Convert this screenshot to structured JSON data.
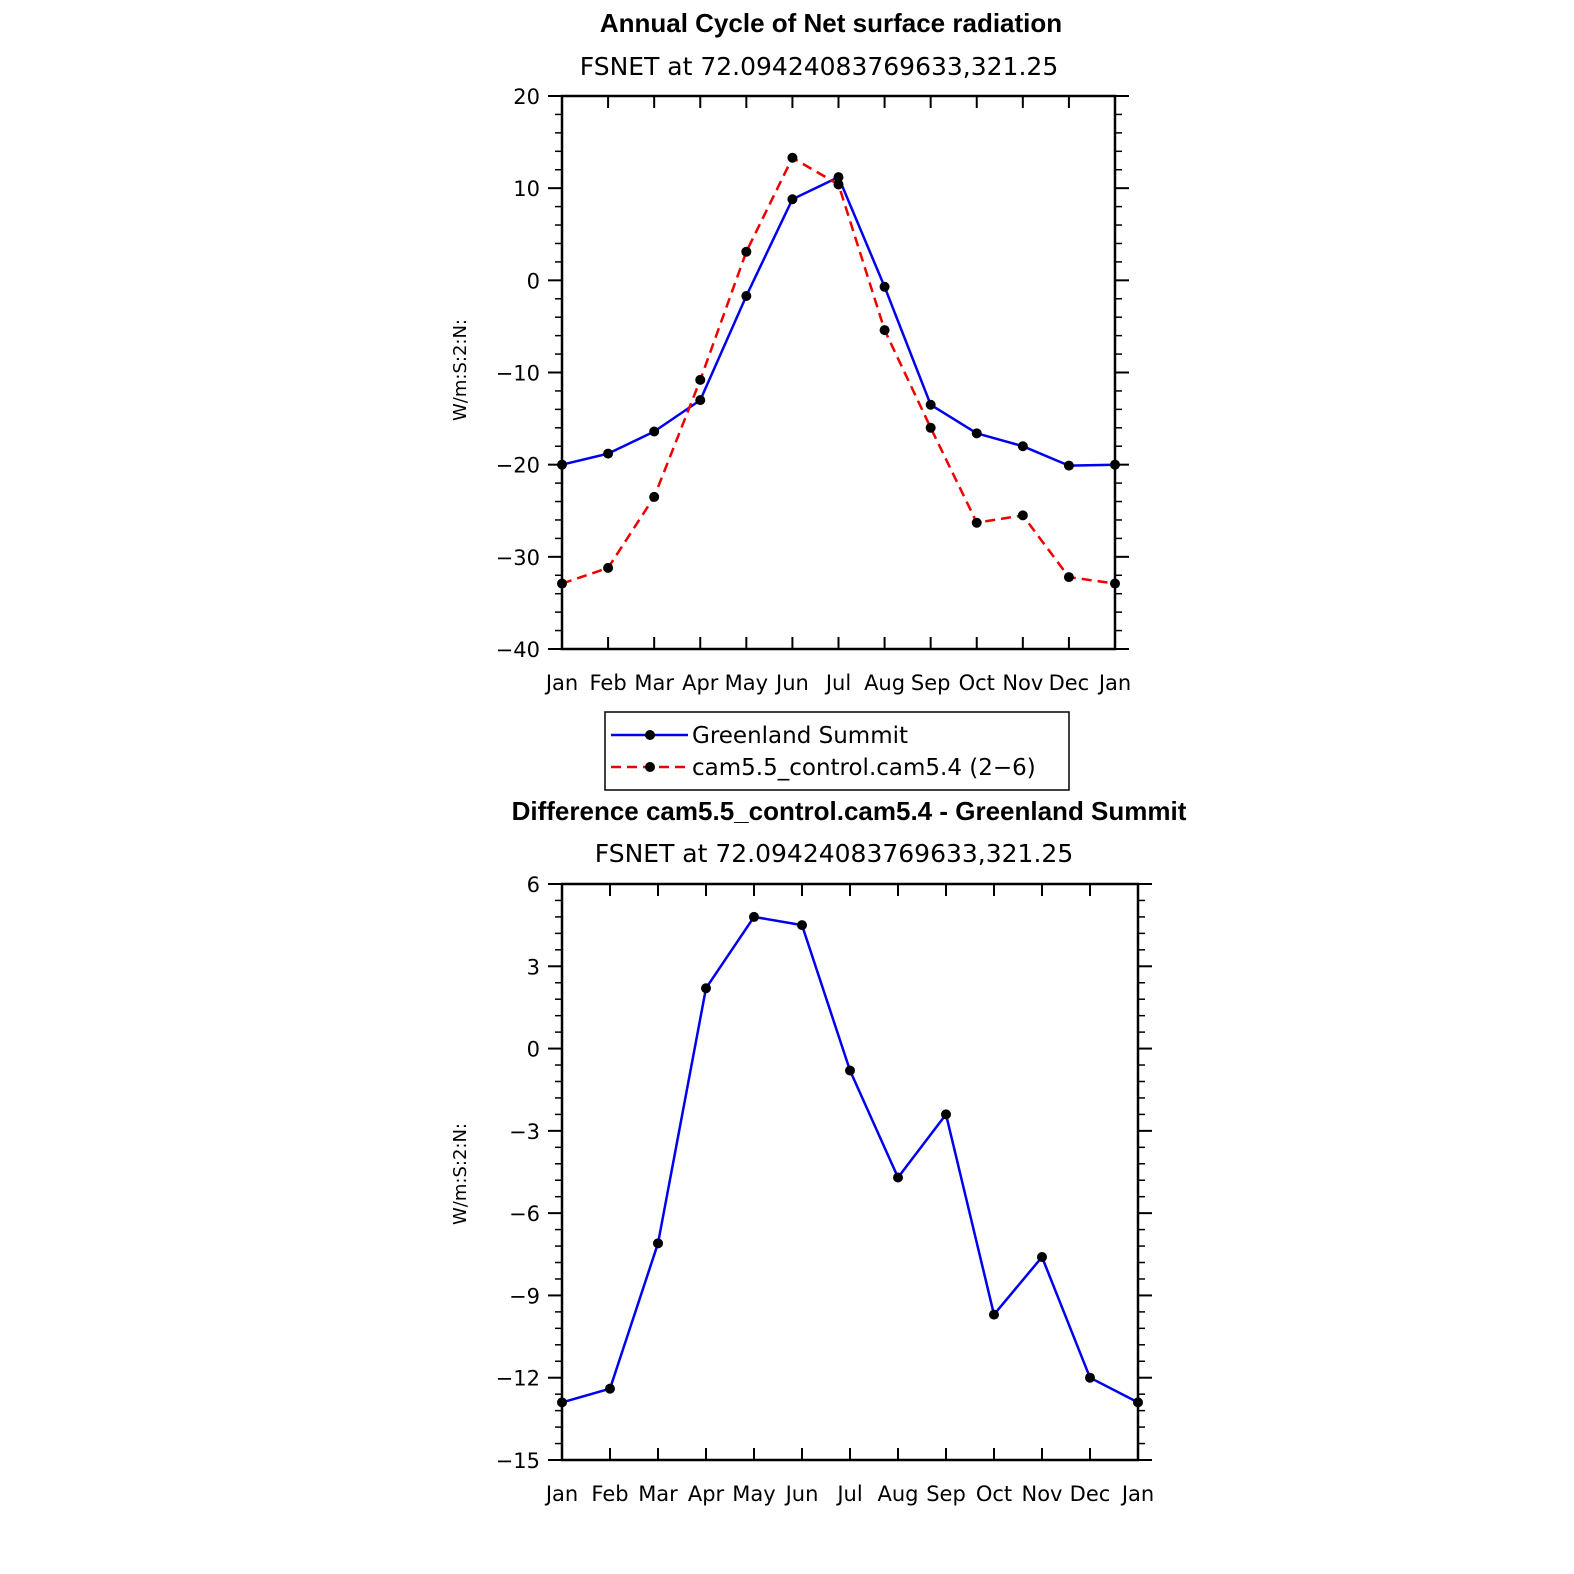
{
  "colors": {
    "observation": "#0000ee",
    "model": "#ee0000",
    "difference": "#0000ee",
    "marker": "#000000",
    "axis": "#000000"
  },
  "legend": {
    "entries": [
      {
        "label": "Greenland Summit",
        "color": "#0000ee",
        "dash": "solid"
      },
      {
        "label": "cam5.5_control.cam5.4 (2−6)",
        "color": "#ee0000",
        "dash": "dashed"
      }
    ]
  },
  "chart_data": [
    {
      "type": "line",
      "title": "Annual Cycle of Net surface radiation",
      "subtitle": "FSNET at 72.09424083769633,321.25",
      "ylabel": "W/m:S:2:N:",
      "xlabel": "",
      "categories": [
        "Jan",
        "Feb",
        "Mar",
        "Apr",
        "May",
        "Jun",
        "Jul",
        "Aug",
        "Sep",
        "Oct",
        "Nov",
        "Dec",
        "Jan"
      ],
      "ylim": [
        -40,
        20
      ],
      "yticks": [
        "20",
        "10",
        "0",
        "−10",
        "−20",
        "−30",
        "−40"
      ],
      "ytick_values": [
        20,
        10,
        0,
        -10,
        -20,
        -30,
        -40
      ],
      "legend_position": "bottom",
      "series": [
        {
          "name": "Greenland Summit",
          "style": "solid",
          "color": "#0000ee",
          "values": [
            -20.0,
            -18.8,
            -16.4,
            -13.0,
            -1.7,
            8.8,
            11.2,
            -0.7,
            -13.5,
            -16.6,
            -18.0,
            -20.1,
            -20.0
          ]
        },
        {
          "name": "cam5.5_control.cam5.4 (2−6)",
          "style": "dashed",
          "color": "#ee0000",
          "values": [
            -32.9,
            -31.2,
            -23.5,
            -10.8,
            3.1,
            13.3,
            10.4,
            -5.4,
            -16.0,
            -26.3,
            -25.5,
            -32.2,
            -32.9
          ]
        }
      ]
    },
    {
      "type": "line",
      "title": "Difference cam5.5_control.cam5.4 - Greenland Summit",
      "subtitle": "FSNET at 72.09424083769633,321.25",
      "ylabel": "W/m:S:2:N:",
      "xlabel": "",
      "categories": [
        "Jan",
        "Feb",
        "Mar",
        "Apr",
        "May",
        "Jun",
        "Jul",
        "Aug",
        "Sep",
        "Oct",
        "Nov",
        "Dec",
        "Jan"
      ],
      "ylim": [
        -15,
        6
      ],
      "yticks": [
        "6",
        "3",
        "0",
        "−3",
        "−6",
        "−9",
        "−12",
        "−15"
      ],
      "ytick_values": [
        6,
        3,
        0,
        -3,
        -6,
        -9,
        -12,
        -15
      ],
      "series": [
        {
          "name": "",
          "style": "solid",
          "color": "#0000ee",
          "values": [
            -12.9,
            -12.4,
            -7.1,
            2.2,
            4.8,
            4.5,
            -0.8,
            -4.7,
            -2.4,
            -9.7,
            -7.6,
            -12.0,
            -12.9
          ]
        }
      ]
    }
  ]
}
